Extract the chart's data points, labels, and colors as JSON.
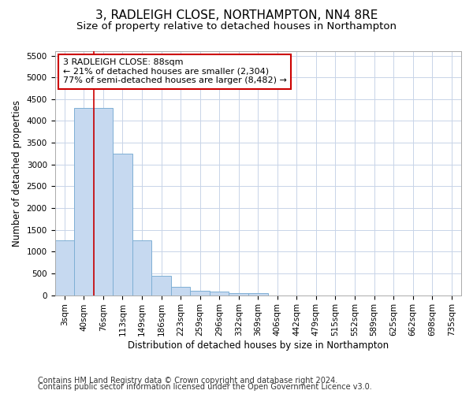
{
  "title": "3, RADLEIGH CLOSE, NORTHAMPTON, NN4 8RE",
  "subtitle": "Size of property relative to detached houses in Northampton",
  "xlabel": "Distribution of detached houses by size in Northampton",
  "ylabel": "Number of detached properties",
  "footer_line1": "Contains HM Land Registry data © Crown copyright and database right 2024.",
  "footer_line2": "Contains public sector information licensed under the Open Government Licence v3.0.",
  "bar_labels": [
    "3sqm",
    "40sqm",
    "76sqm",
    "113sqm",
    "149sqm",
    "186sqm",
    "223sqm",
    "259sqm",
    "296sqm",
    "332sqm",
    "369sqm",
    "406sqm",
    "442sqm",
    "479sqm",
    "515sqm",
    "552sqm",
    "589sqm",
    "625sqm",
    "662sqm",
    "698sqm",
    "735sqm"
  ],
  "bar_values": [
    1250,
    4300,
    4300,
    3250,
    1250,
    450,
    200,
    100,
    75,
    55,
    45,
    0,
    0,
    0,
    0,
    0,
    0,
    0,
    0,
    0,
    0
  ],
  "bar_color": "#c6d9f0",
  "bar_edge_color": "#7eafd4",
  "red_line_x": 2.0,
  "annotation_line1": "3 RADLEIGH CLOSE: 88sqm",
  "annotation_line2": "← 21% of detached houses are smaller (2,304)",
  "annotation_line3": "77% of semi-detached houses are larger (8,482) →",
  "annotation_box_color": "#ffffff",
  "annotation_border_color": "#cc0000",
  "ylim": [
    0,
    5600
  ],
  "yticks": [
    0,
    500,
    1000,
    1500,
    2000,
    2500,
    3000,
    3500,
    4000,
    4500,
    5000,
    5500
  ],
  "background_color": "#ffffff",
  "grid_color": "#c8d4e8",
  "title_fontsize": 11,
  "subtitle_fontsize": 9.5,
  "axis_label_fontsize": 8.5,
  "tick_fontsize": 7.5,
  "footer_fontsize": 7,
  "annotation_fontsize": 8
}
